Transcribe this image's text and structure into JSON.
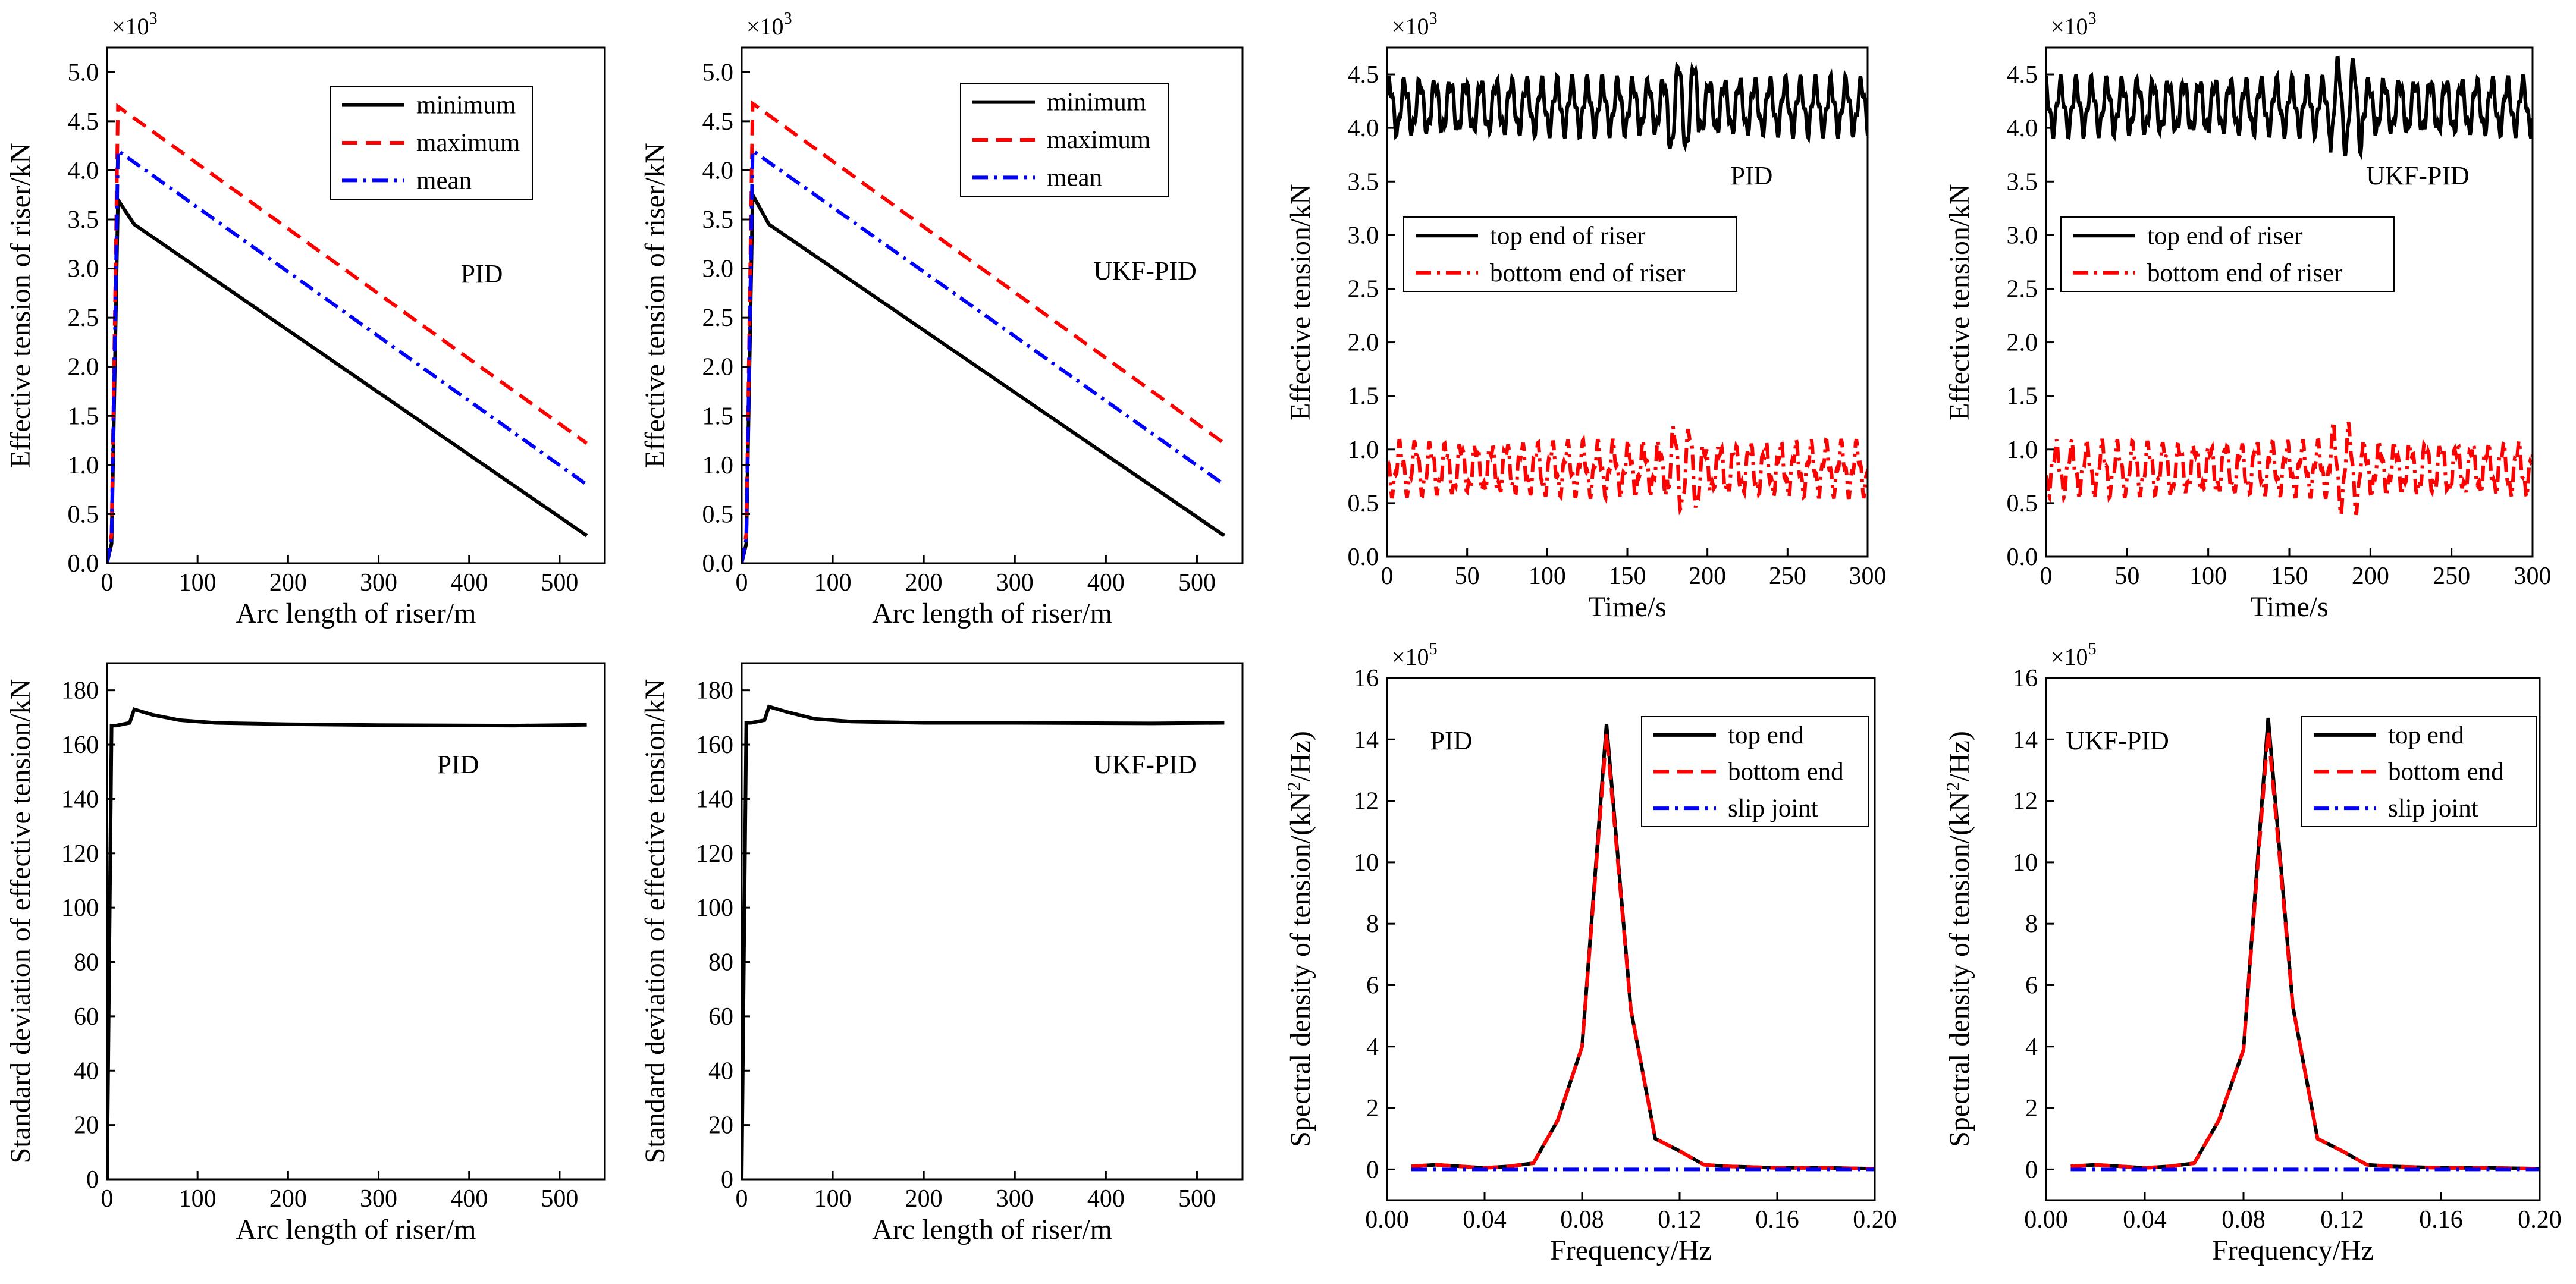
{
  "chart_data": [
    {
      "type": "line",
      "panel_label": "PID",
      "multiplier": "×10",
      "multiplier_exp": "3",
      "xlabel": "Arc length of riser/m",
      "ylabel": "Effective tension of riser/kN",
      "xlim": [
        0,
        550
      ],
      "ylim": [
        0,
        5.25
      ],
      "xticks": [
        0,
        100,
        200,
        300,
        400,
        500
      ],
      "yticks": [
        0,
        0.5,
        1.0,
        1.5,
        2.0,
        2.5,
        3.0,
        3.5,
        4.0,
        4.5,
        5.0
      ],
      "ytick_labels": [
        "0.0",
        "0.5",
        "1.0",
        "1.5",
        "2.0",
        "2.5",
        "3.0",
        "3.5",
        "4.0",
        "4.5",
        "5.0"
      ],
      "series": [
        {
          "name": "minimum",
          "x": [
            0,
            5,
            12,
            30,
            530
          ],
          "y": [
            0,
            0.2,
            3.7,
            3.45,
            0.28
          ]
        },
        {
          "name": "maximum",
          "x": [
            0,
            5,
            12,
            530
          ],
          "y": [
            0,
            0.3,
            4.65,
            1.22
          ]
        },
        {
          "name": "mean",
          "x": [
            0,
            5,
            12,
            530
          ],
          "y": [
            0,
            0.25,
            4.2,
            0.8
          ]
        }
      ]
    },
    {
      "type": "line",
      "panel_label": "UKF-PID",
      "multiplier": "×10",
      "multiplier_exp": "3",
      "xlabel": "Arc length of riser/m",
      "ylabel": "Effective tension of riser/kN",
      "xlim": [
        0,
        550
      ],
      "ylim": [
        0,
        5.25
      ],
      "xticks": [
        0,
        100,
        200,
        300,
        400,
        500
      ],
      "yticks": [
        0,
        0.5,
        1.0,
        1.5,
        2.0,
        2.5,
        3.0,
        3.5,
        4.0,
        4.5,
        5.0
      ],
      "ytick_labels": [
        "0.0",
        "0.5",
        "1.0",
        "1.5",
        "2.0",
        "2.5",
        "3.0",
        "3.5",
        "4.0",
        "4.5",
        "5.0"
      ],
      "series": [
        {
          "name": "minimum",
          "x": [
            0,
            5,
            12,
            30,
            530
          ],
          "y": [
            0,
            0.2,
            3.75,
            3.45,
            0.28
          ]
        },
        {
          "name": "maximum",
          "x": [
            0,
            5,
            12,
            530
          ],
          "y": [
            0,
            0.3,
            4.68,
            1.22
          ]
        },
        {
          "name": "mean",
          "x": [
            0,
            5,
            12,
            530
          ],
          "y": [
            0,
            0.25,
            4.2,
            0.8
          ]
        }
      ]
    },
    {
      "type": "line",
      "panel_label": "PID",
      "multiplier": "×10",
      "multiplier_exp": "3",
      "xlabel": "Time/s",
      "ylabel": "Effective tension/kN",
      "xlim": [
        0,
        300
      ],
      "ylim": [
        0,
        4.75
      ],
      "xticks": [
        0,
        50,
        100,
        150,
        200,
        250,
        300
      ],
      "yticks": [
        0,
        0.5,
        1.0,
        1.5,
        2.0,
        2.5,
        3.0,
        3.5,
        4.0,
        4.5
      ],
      "ytick_labels": [
        "0.0",
        "0.5",
        "1.0",
        "1.5",
        "2.0",
        "2.5",
        "3.0",
        "3.5",
        "4.0",
        "4.5"
      ],
      "series": [
        {
          "name": "top end of riser",
          "mean": 4.2,
          "amplitude": 0.22,
          "period_s": 9.5
        },
        {
          "name": "bottom end of riser",
          "mean": 0.82,
          "amplitude": 0.2,
          "period_s": 9.5
        }
      ]
    },
    {
      "type": "line",
      "panel_label": "UKF-PID",
      "multiplier": "×10",
      "multiplier_exp": "3",
      "xlabel": "Time/s",
      "ylabel": "Effective tension/kN",
      "xlim": [
        0,
        300
      ],
      "ylim": [
        0,
        4.75
      ],
      "xticks": [
        0,
        50,
        100,
        150,
        200,
        250,
        300
      ],
      "yticks": [
        0,
        0.5,
        1.0,
        1.5,
        2.0,
        2.5,
        3.0,
        3.5,
        4.0,
        4.5
      ],
      "ytick_labels": [
        "0.0",
        "0.5",
        "1.0",
        "1.5",
        "2.0",
        "2.5",
        "3.0",
        "3.5",
        "4.0",
        "4.5"
      ],
      "series": [
        {
          "name": "top end of riser",
          "mean": 4.2,
          "amplitude": 0.22,
          "period_s": 9.5
        },
        {
          "name": "bottom end of riser",
          "mean": 0.82,
          "amplitude": 0.2,
          "period_s": 9.5
        }
      ]
    },
    {
      "type": "line",
      "panel_label": "PID",
      "xlabel": "Arc length of riser/m",
      "ylabel": "Standard deviation of effective tension/kN",
      "xlim": [
        0,
        550
      ],
      "ylim": [
        0,
        190
      ],
      "xticks": [
        0,
        100,
        200,
        300,
        400,
        500
      ],
      "yticks": [
        0,
        20,
        40,
        60,
        80,
        100,
        120,
        140,
        160,
        180
      ],
      "ytick_labels": [
        "0",
        "20",
        "40",
        "60",
        "80",
        "100",
        "120",
        "140",
        "160",
        "180"
      ],
      "series": [
        {
          "name": "std",
          "x": [
            0,
            5,
            10,
            25,
            30,
            50,
            80,
            120,
            200,
            300,
            450,
            530
          ],
          "y": [
            0,
            167,
            167,
            168,
            173,
            171,
            169,
            168,
            167.5,
            167.2,
            167,
            167.3
          ]
        }
      ]
    },
    {
      "type": "line",
      "panel_label": "UKF-PID",
      "xlabel": "Arc length of riser/m",
      "ylabel": "Standard deviation of effective tension/kN",
      "xlim": [
        0,
        550
      ],
      "ylim": [
        0,
        190
      ],
      "xticks": [
        0,
        100,
        200,
        300,
        400,
        500
      ],
      "yticks": [
        0,
        20,
        40,
        60,
        80,
        100,
        120,
        140,
        160,
        180
      ],
      "ytick_labels": [
        "0",
        "20",
        "40",
        "60",
        "80",
        "100",
        "120",
        "140",
        "160",
        "180"
      ],
      "series": [
        {
          "name": "std",
          "x": [
            0,
            5,
            10,
            25,
            30,
            50,
            80,
            120,
            200,
            300,
            450,
            530
          ],
          "y": [
            0,
            168,
            168,
            169,
            174,
            172,
            169.5,
            168.5,
            168,
            168,
            167.8,
            168
          ]
        }
      ]
    },
    {
      "type": "line",
      "panel_label": "PID",
      "multiplier": "×10",
      "multiplier_exp": "5",
      "xlabel": "Frequency/Hz",
      "ylabel_parts": [
        "Spectral density of tension/(kN",
        "2",
        "/Hz)"
      ],
      "xlim": [
        0,
        0.2
      ],
      "ylim": [
        -1,
        16
      ],
      "xticks": [
        0,
        0.04,
        0.08,
        0.12,
        0.16,
        0.2
      ],
      "xtick_labels": [
        "0.00",
        "0.04",
        "0.08",
        "0.12",
        "0.16",
        "0.20"
      ],
      "yticks": [
        0,
        2,
        4,
        6,
        8,
        10,
        12,
        14,
        16
      ],
      "ytick_labels": [
        "0",
        "2",
        "4",
        "6",
        "8",
        "10",
        "12",
        "14",
        "16"
      ],
      "series": [
        {
          "name": "top end",
          "x": [
            0.01,
            0.02,
            0.03,
            0.04,
            0.05,
            0.06,
            0.07,
            0.08,
            0.09,
            0.1,
            0.11,
            0.12,
            0.13,
            0.14,
            0.16,
            0.18,
            0.2
          ],
          "y": [
            0.1,
            0.15,
            0.1,
            0.05,
            0.1,
            0.2,
            1.6,
            4.0,
            14.5,
            5.2,
            1.0,
            0.6,
            0.15,
            0.1,
            0.05,
            0.05,
            0.02
          ]
        },
        {
          "name": "bottom end",
          "x": [
            0.01,
            0.02,
            0.03,
            0.04,
            0.05,
            0.06,
            0.07,
            0.08,
            0.09,
            0.1,
            0.11,
            0.12,
            0.13,
            0.14,
            0.16,
            0.18,
            0.2
          ],
          "y": [
            0.1,
            0.15,
            0.1,
            0.05,
            0.1,
            0.2,
            1.6,
            4.0,
            14.2,
            5.2,
            1.0,
            0.6,
            0.15,
            0.1,
            0.05,
            0.05,
            0.02
          ]
        },
        {
          "name": "slip joint",
          "x": [
            0.01,
            0.2
          ],
          "y": [
            0,
            0
          ]
        }
      ]
    },
    {
      "type": "line",
      "panel_label": "UKF-PID",
      "multiplier": "×10",
      "multiplier_exp": "5",
      "xlabel": "Frequency/Hz",
      "ylabel_parts": [
        "Spectral density of tension/(kN",
        "2",
        "/Hz)"
      ],
      "xlim": [
        0,
        0.2
      ],
      "ylim": [
        -1,
        16
      ],
      "xticks": [
        0,
        0.04,
        0.08,
        0.12,
        0.16,
        0.2
      ],
      "xtick_labels": [
        "0.00",
        "0.04",
        "0.08",
        "0.12",
        "0.16",
        "0.20"
      ],
      "yticks": [
        0,
        2,
        4,
        6,
        8,
        10,
        12,
        14,
        16
      ],
      "ytick_labels": [
        "0",
        "2",
        "4",
        "6",
        "8",
        "10",
        "12",
        "14",
        "16"
      ],
      "series": [
        {
          "name": "top end",
          "x": [
            0.01,
            0.02,
            0.03,
            0.04,
            0.05,
            0.06,
            0.07,
            0.08,
            0.09,
            0.1,
            0.11,
            0.12,
            0.13,
            0.14,
            0.16,
            0.18,
            0.2
          ],
          "y": [
            0.1,
            0.15,
            0.1,
            0.05,
            0.1,
            0.2,
            1.6,
            3.9,
            14.7,
            5.3,
            1.0,
            0.6,
            0.15,
            0.1,
            0.05,
            0.05,
            0.02
          ]
        },
        {
          "name": "bottom end",
          "x": [
            0.01,
            0.02,
            0.03,
            0.04,
            0.05,
            0.06,
            0.07,
            0.08,
            0.09,
            0.1,
            0.11,
            0.12,
            0.13,
            0.14,
            0.16,
            0.18,
            0.2
          ],
          "y": [
            0.1,
            0.15,
            0.1,
            0.05,
            0.1,
            0.2,
            1.6,
            3.9,
            14.3,
            5.3,
            1.0,
            0.6,
            0.15,
            0.1,
            0.05,
            0.05,
            0.02
          ]
        },
        {
          "name": "slip joint",
          "x": [
            0.01,
            0.2
          ],
          "y": [
            0,
            0
          ]
        }
      ]
    }
  ]
}
